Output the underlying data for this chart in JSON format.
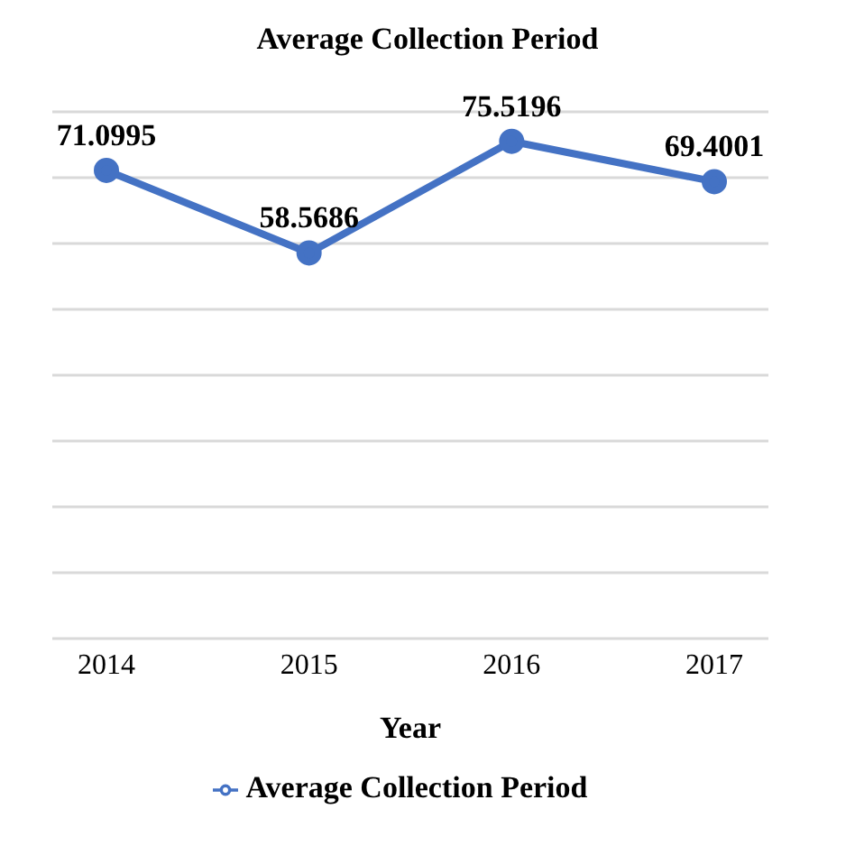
{
  "chart_data": {
    "type": "line",
    "title": "Average Collection Period",
    "xlabel": "Year",
    "categories": [
      "2014",
      "2015",
      "2016",
      "2017"
    ],
    "series": [
      {
        "name": "Average Collection Period",
        "color": "#4472c4",
        "values": [
          71.0995,
          58.5686,
          75.5196,
          69.4001
        ]
      }
    ],
    "ylim": [
      0,
      80
    ],
    "yticks": [
      {
        "value": 0,
        "label": null
      },
      {
        "value": 10,
        "label": null
      },
      {
        "value": 20,
        "label": null
      },
      {
        "value": 30,
        "label": null
      },
      {
        "value": 40,
        "label": null
      },
      {
        "value": 50,
        "label": null
      },
      {
        "value": 60,
        "label": null
      },
      {
        "value": 70,
        "label": null
      },
      {
        "value": 80,
        "label": null
      }
    ],
    "tick_labels": "x",
    "grid": "y",
    "data_labels": true,
    "marker": "circle",
    "line_style": "solid",
    "legend": "bottom"
  }
}
